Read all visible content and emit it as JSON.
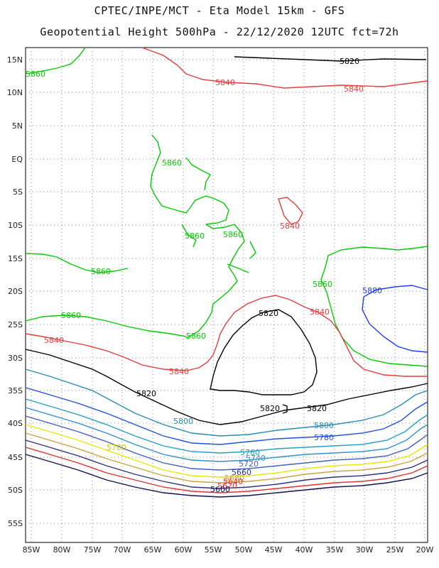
{
  "header": {
    "line1": "CPTEC/INPE/MCT -  Eta Model 15km - GFS",
    "line2": "Geopotential Height 500hPa - 22/12/2020 12UTC fct=72h"
  },
  "axes": {
    "lat_labels": [
      "15N",
      "10N",
      "5N",
      "EQ",
      "5S",
      "10S",
      "15S",
      "20S",
      "25S",
      "30S",
      "35S",
      "40S",
      "45S",
      "50S",
      "55S"
    ],
    "lon_labels": [
      "85W",
      "80W",
      "75W",
      "70W",
      "65W",
      "60W",
      "55W",
      "50W",
      "45W",
      "40W",
      "35W",
      "30W",
      "25W",
      "20W"
    ]
  },
  "contours": {
    "colors": {
      "c5860": "#00cc00",
      "c5840": "#e63c3c",
      "c5820": "#000000",
      "c5880": "#1e3cff",
      "c5800": "#2a8ab8",
      "c5780": "#2050e0",
      "c5760": "#20a0c8",
      "c5740": "#3090d0",
      "c5720": "#4060c0",
      "c5700": "#e8e800",
      "c5680": "#d0a040",
      "c5660": "#303080",
      "c5640": "#e03030",
      "c5600": "#101050",
      "land": "#000000",
      "grid": "#888888"
    },
    "labels": [
      {
        "text": "5820",
        "color": "c5820"
      },
      {
        "text": "5840",
        "color": "c5840"
      },
      {
        "text": "5840",
        "color": "c5840"
      },
      {
        "text": "5860",
        "color": "c5860"
      },
      {
        "text": "5860",
        "color": "c5860"
      },
      {
        "text": "5860",
        "color": "c5860"
      },
      {
        "text": "5860",
        "color": "c5860"
      },
      {
        "text": "5840",
        "color": "c5840"
      },
      {
        "text": "5860",
        "color": "c5860"
      },
      {
        "text": "5860",
        "color": "c5860"
      },
      {
        "text": "5880",
        "color": "c5880"
      },
      {
        "text": "5820",
        "color": "c5820"
      },
      {
        "text": "5840",
        "color": "c5840"
      },
      {
        "text": "5860",
        "color": "c5860"
      },
      {
        "text": "5840",
        "color": "c5840"
      },
      {
        "text": "5860",
        "color": "c5860"
      },
      {
        "text": "5840",
        "color": "c5840"
      },
      {
        "text": "5820",
        "color": "c5820"
      },
      {
        "text": "5820",
        "color": "c5820"
      },
      {
        "text": "5820",
        "color": "c5820"
      },
      {
        "text": "5800",
        "color": "c5800"
      },
      {
        "text": "5800",
        "color": "c5800"
      },
      {
        "text": "5780",
        "color": "c5780"
      },
      {
        "text": "5700",
        "color": "c5700"
      },
      {
        "text": "5760",
        "color": "c5760"
      },
      {
        "text": "5740",
        "color": "c5740"
      },
      {
        "text": "5720",
        "color": "c5720"
      },
      {
        "text": "5660",
        "color": "c5660"
      },
      {
        "text": "5680",
        "color": "c5680"
      },
      {
        "text": "5640",
        "color": "c5640"
      },
      {
        "text": "5620",
        "color": "c5640"
      },
      {
        "text": "5600",
        "color": "c5600"
      }
    ]
  }
}
